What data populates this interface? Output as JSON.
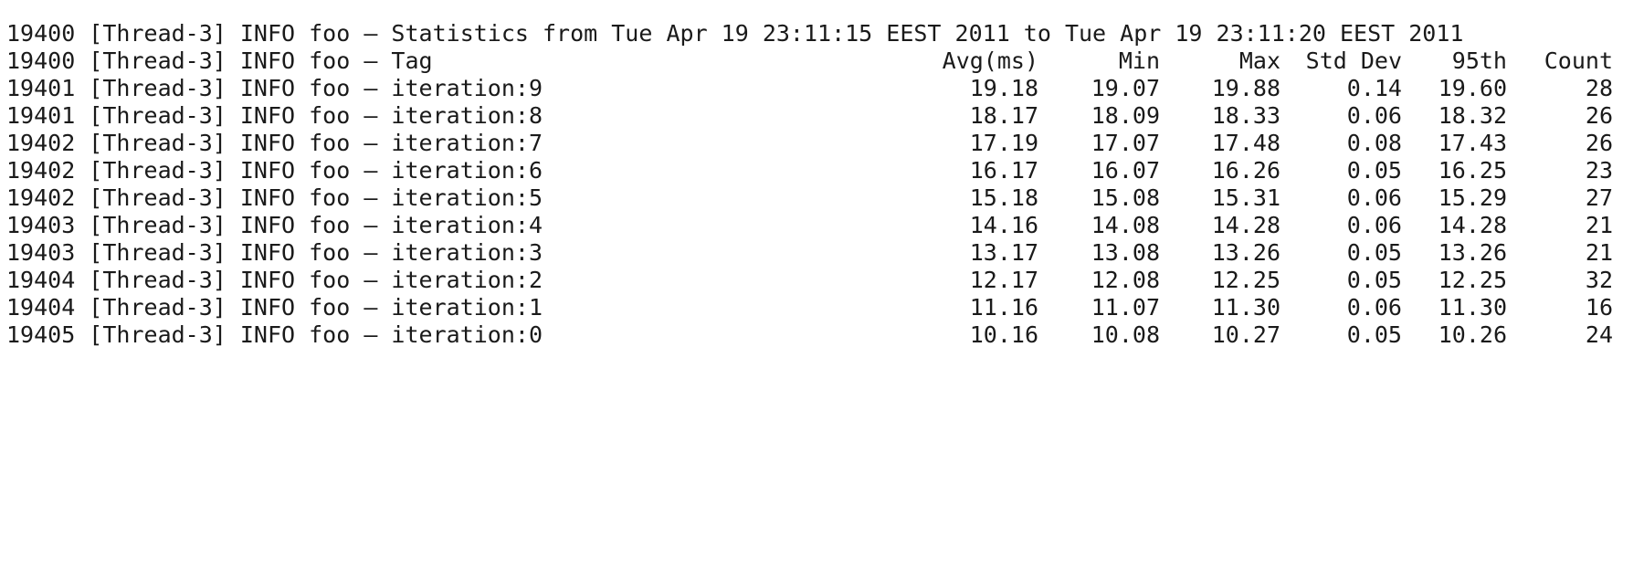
{
  "terminal": {
    "header_line": "19400 [Thread-3] INFO foo – Statistics from Tue Apr 19 23:11:15 EEST 2011 to Tue Apr 19 23:11:20 EEST 2011",
    "columns_line": {
      "prefix": "19400 [Thread-3] INFO foo – Tag",
      "avg": "Avg(ms)",
      "min": "Min",
      "max": "Max",
      "std": "Std Dev",
      "p95": "95th",
      "count": "Count"
    },
    "rows": [
      {
        "prefix": "19401 [Thread-3] INFO foo – iteration:9",
        "avg": "19.18",
        "min": "19.07",
        "max": "19.88",
        "std": "0.14",
        "p95": "19.60",
        "count": "28"
      },
      {
        "prefix": "19401 [Thread-3] INFO foo – iteration:8",
        "avg": "18.17",
        "min": "18.09",
        "max": "18.33",
        "std": "0.06",
        "p95": "18.32",
        "count": "26"
      },
      {
        "prefix": "19402 [Thread-3] INFO foo – iteration:7",
        "avg": "17.19",
        "min": "17.07",
        "max": "17.48",
        "std": "0.08",
        "p95": "17.43",
        "count": "26"
      },
      {
        "prefix": "19402 [Thread-3] INFO foo – iteration:6",
        "avg": "16.17",
        "min": "16.07",
        "max": "16.26",
        "std": "0.05",
        "p95": "16.25",
        "count": "23"
      },
      {
        "prefix": "19402 [Thread-3] INFO foo – iteration:5",
        "avg": "15.18",
        "min": "15.08",
        "max": "15.31",
        "std": "0.06",
        "p95": "15.29",
        "count": "27"
      },
      {
        "prefix": "19403 [Thread-3] INFO foo – iteration:4",
        "avg": "14.16",
        "min": "14.08",
        "max": "14.28",
        "std": "0.06",
        "p95": "14.28",
        "count": "21"
      },
      {
        "prefix": "19403 [Thread-3] INFO foo – iteration:3",
        "avg": "13.17",
        "min": "13.08",
        "max": "13.26",
        "std": "0.05",
        "p95": "13.26",
        "count": "21"
      },
      {
        "prefix": "19404 [Thread-3] INFO foo – iteration:2",
        "avg": "12.17",
        "min": "12.08",
        "max": "12.25",
        "std": "0.05",
        "p95": "12.25",
        "count": "32"
      },
      {
        "prefix": "19404 [Thread-3] INFO foo – iteration:1",
        "avg": "11.16",
        "min": "11.07",
        "max": "11.30",
        "std": "0.06",
        "p95": "11.30",
        "count": "16"
      },
      {
        "prefix": "19405 [Thread-3] INFO foo – iteration:0",
        "avg": "10.16",
        "min": "10.08",
        "max": "10.27",
        "std": "0.05",
        "p95": "10.26",
        "count": "24"
      }
    ]
  }
}
